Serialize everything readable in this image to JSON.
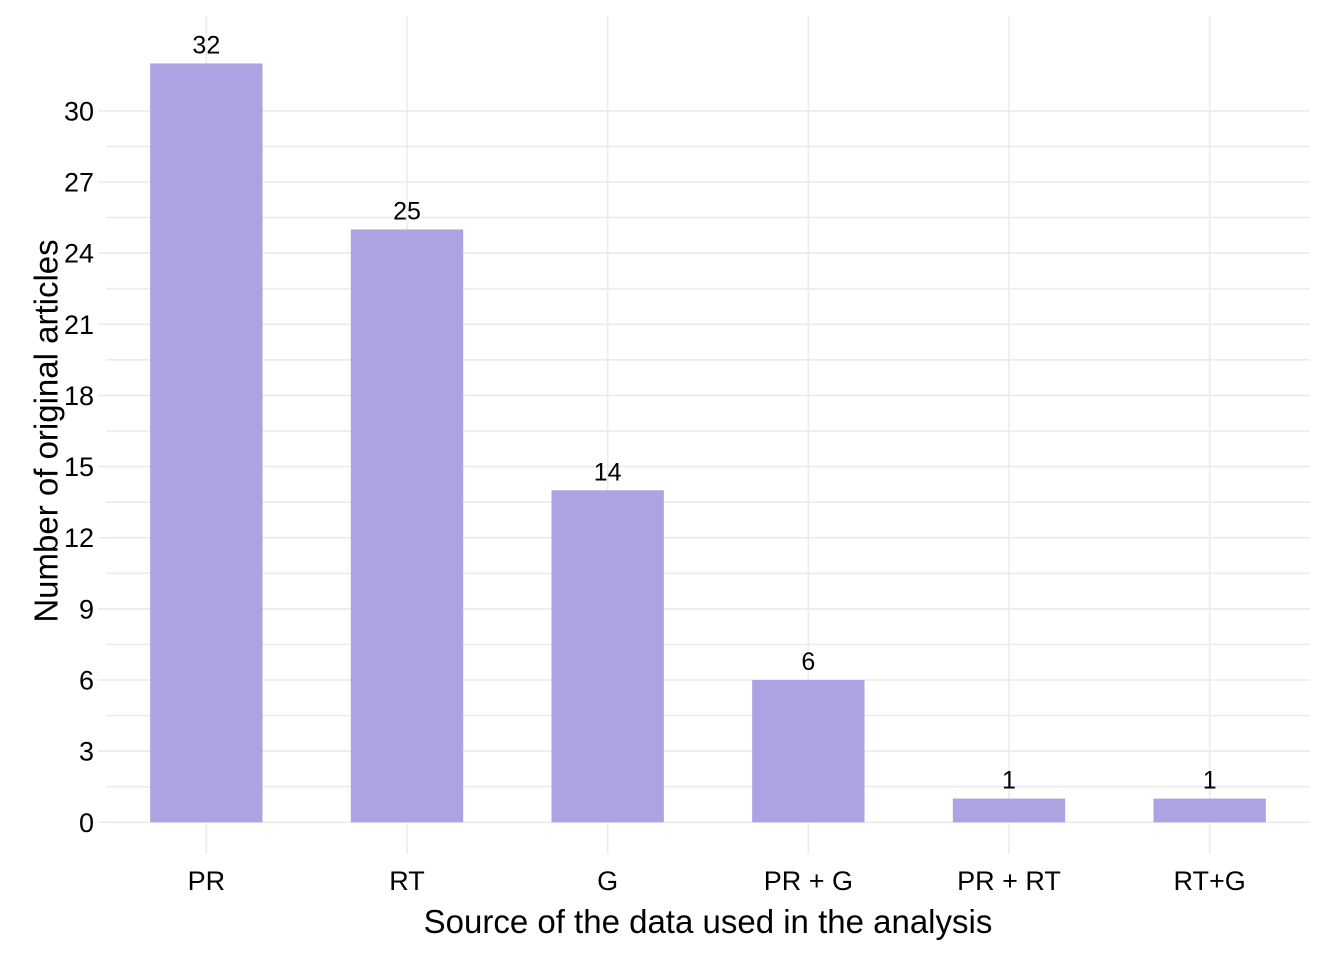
{
  "chart_data": {
    "type": "bar",
    "title": "",
    "xlabel": "Source of the data used in the analysis",
    "ylabel": "Number of original articles",
    "categories": [
      "PR",
      "RT",
      "G",
      "PR + G",
      "PR + RT",
      "RT+G"
    ],
    "values": [
      32,
      25,
      14,
      6,
      1,
      1
    ],
    "ylim": [
      -1,
      34
    ],
    "yticks": [
      0,
      3,
      6,
      9,
      12,
      15,
      18,
      21,
      24,
      27,
      30
    ],
    "grid": true,
    "legend": "none",
    "bar_color": "#aca4e2",
    "grid_color": "#ebebeb",
    "text_color": "#000000"
  }
}
